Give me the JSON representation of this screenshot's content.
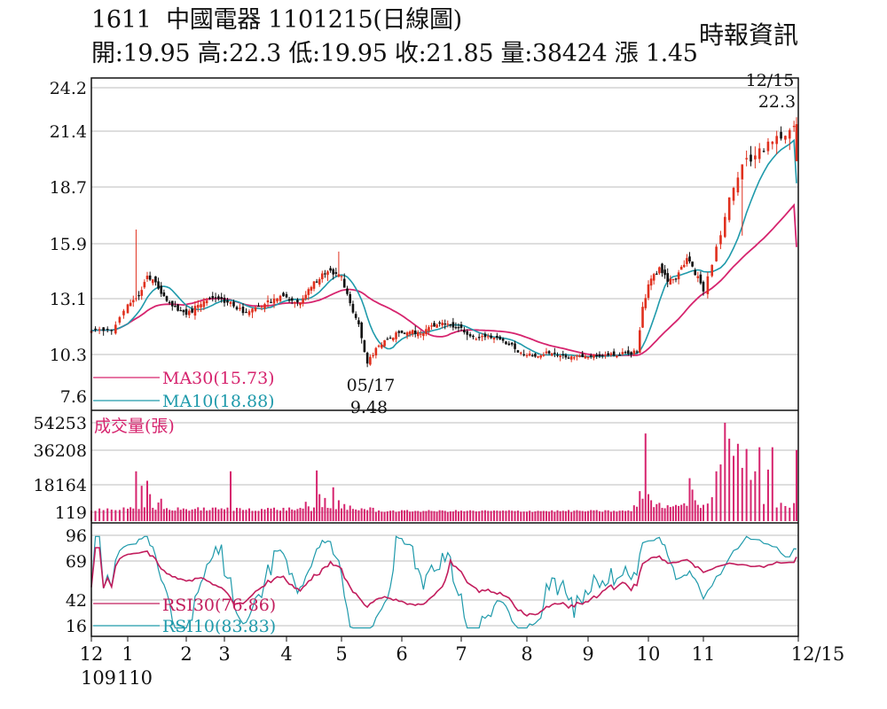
{
  "header": {
    "code": "1611",
    "name": "中國電器",
    "date_code": "1101215(日線圖)",
    "source": "時報資訊",
    "open_label": "開:",
    "open": "19.95",
    "high_label": "高:",
    "high": "22.3",
    "low_label": "低:",
    "low": "19.95",
    "close_label": "收:",
    "close": "21.85",
    "volume_label": "量:",
    "volume": "38424",
    "change_label": "漲",
    "change": "1.45"
  },
  "colors": {
    "up": "#e0301e",
    "down": "#111111",
    "ma30": "#d6246e",
    "ma10": "#1f9aab",
    "volume": "#d6246e",
    "rsi30": "#c21d5d",
    "rsi10": "#1f9aab",
    "grid": "#bdbdbd"
  },
  "chart_data": [
    {
      "type": "candlestick",
      "panel": "price",
      "y_ticks": [
        "24.2",
        "21.4",
        "18.7",
        "15.9",
        "13.1",
        "10.3",
        "7.6"
      ],
      "ylim": [
        7.6,
        24.2
      ],
      "x_ticks": [
        {
          "label": "12",
          "sub": "109"
        },
        {
          "label": "1",
          "sub": "110"
        },
        {
          "label": "2"
        },
        {
          "label": "3"
        },
        {
          "label": "4"
        },
        {
          "label": "5"
        },
        {
          "label": "6"
        },
        {
          "label": "7"
        },
        {
          "label": "8"
        },
        {
          "label": "9"
        },
        {
          "label": "10"
        },
        {
          "label": "11"
        },
        {
          "label": "12/15"
        }
      ],
      "series": [
        {
          "name": "MA30",
          "legend": "MA30(15.73)",
          "last": 15.73
        },
        {
          "name": "MA10",
          "legend": "MA10(18.88)",
          "last": 18.88
        }
      ],
      "key_points": {
        "start_close": 11.5,
        "jan_peak_high": 16.6,
        "apr_peak_high": 15.5,
        "low": {
          "date": "05/17",
          "value": "9.48"
        },
        "oct_base": 10.2,
        "nov_peak_high": 16.3,
        "high": {
          "date": "12/15",
          "value": "22.3"
        }
      },
      "annotations": [
        {
          "text": "12/15",
          "ref": "high"
        },
        {
          "text": "22.3",
          "ref": "high"
        },
        {
          "text": "05/17",
          "ref": "low"
        },
        {
          "text": "9.48",
          "ref": "low"
        }
      ]
    },
    {
      "type": "bar",
      "panel": "volume",
      "title": "成交量(張)",
      "y_ticks": [
        "54253",
        "36208",
        "18164",
        "119"
      ],
      "ylim": [
        119,
        54253
      ]
    },
    {
      "type": "line",
      "panel": "rsi",
      "y_ticks": [
        "96",
        "69",
        "42",
        "16"
      ],
      "ylim": [
        16,
        96
      ],
      "series": [
        {
          "name": "RSI30",
          "legend": "RSI30(76.86)",
          "last": 76.86
        },
        {
          "name": "RSI10",
          "legend": "RSI10(83.83)",
          "last": 83.83
        }
      ]
    }
  ]
}
